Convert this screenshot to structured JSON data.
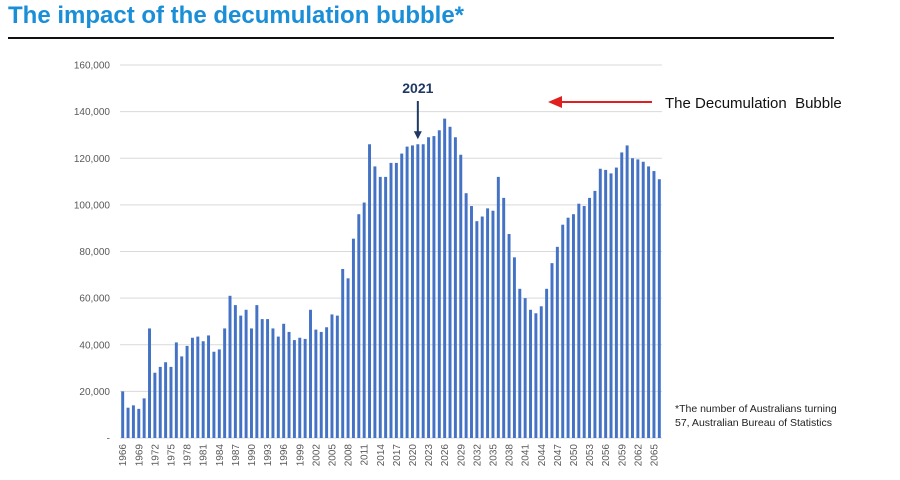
{
  "page": {
    "title": "The impact of the decumulation bubble*",
    "footnote_line1": "*The number of Australians turning",
    "footnote_line2": "57, Australian Bureau of Statistics"
  },
  "chart_data": {
    "type": "bar",
    "title": "",
    "xlabel": "",
    "ylabel": "",
    "ylim": [
      0,
      160000
    ],
    "y_ticks": [
      "-",
      "20,000",
      "40,000",
      "60,000",
      "80,000",
      "100,000",
      "120,000",
      "140,000",
      "160,000"
    ],
    "gridlines": true,
    "bar_color": "#4472c4",
    "x_start": 1966,
    "x_label_step": 3,
    "categories": [
      1966,
      1967,
      1968,
      1969,
      1970,
      1971,
      1972,
      1973,
      1974,
      1975,
      1976,
      1977,
      1978,
      1979,
      1980,
      1981,
      1982,
      1983,
      1984,
      1985,
      1986,
      1987,
      1988,
      1989,
      1990,
      1991,
      1992,
      1993,
      1994,
      1995,
      1996,
      1997,
      1998,
      1999,
      2000,
      2001,
      2002,
      2003,
      2004,
      2005,
      2006,
      2007,
      2008,
      2009,
      2010,
      2011,
      2012,
      2013,
      2014,
      2015,
      2016,
      2017,
      2018,
      2019,
      2020,
      2021,
      2022,
      2023,
      2024,
      2025,
      2026,
      2027,
      2028,
      2029,
      2030,
      2031,
      2032,
      2033,
      2034,
      2035,
      2036,
      2037,
      2038,
      2039,
      2040,
      2041,
      2042,
      2043,
      2044,
      2045,
      2046,
      2047,
      2048,
      2049,
      2050,
      2051,
      2052,
      2053,
      2054,
      2055,
      2056,
      2057,
      2058,
      2059,
      2060,
      2061,
      2062,
      2063,
      2064,
      2065,
      2066
    ],
    "values": [
      20000,
      13000,
      14000,
      12500,
      17000,
      47000,
      28000,
      30500,
      32500,
      30500,
      41000,
      35000,
      39500,
      43000,
      43500,
      41500,
      44000,
      37000,
      38000,
      47000,
      61000,
      57000,
      52500,
      55000,
      47000,
      57000,
      51000,
      51000,
      47000,
      43500,
      49000,
      45500,
      42000,
      43000,
      42500,
      55000,
      46500,
      45500,
      47500,
      53000,
      52500,
      72500,
      68500,
      85500,
      96000,
      101000,
      126000,
      116500,
      112000,
      112000,
      118000,
      118000,
      122000,
      125000,
      125500,
      126000,
      126000,
      129000,
      129500,
      132000,
      137000,
      133500,
      129000,
      121500,
      105000,
      99500,
      93000,
      95000,
      98500,
      97500,
      112000,
      103000,
      87500,
      77500,
      64000,
      60000,
      55000,
      53500,
      56500,
      64000,
      75000,
      82000,
      91500,
      94500,
      96000,
      100500,
      99500,
      103000,
      106000,
      115500,
      115000,
      113500,
      116000,
      122500,
      125500,
      120000,
      119500,
      118500,
      116500,
      114500,
      111000
    ],
    "annotations": [
      {
        "label": "2021",
        "category": 2021,
        "type": "arrow-down"
      },
      {
        "label": "The Decumulation  Bubble",
        "type": "arrow-left",
        "color": "#e02020"
      }
    ]
  }
}
